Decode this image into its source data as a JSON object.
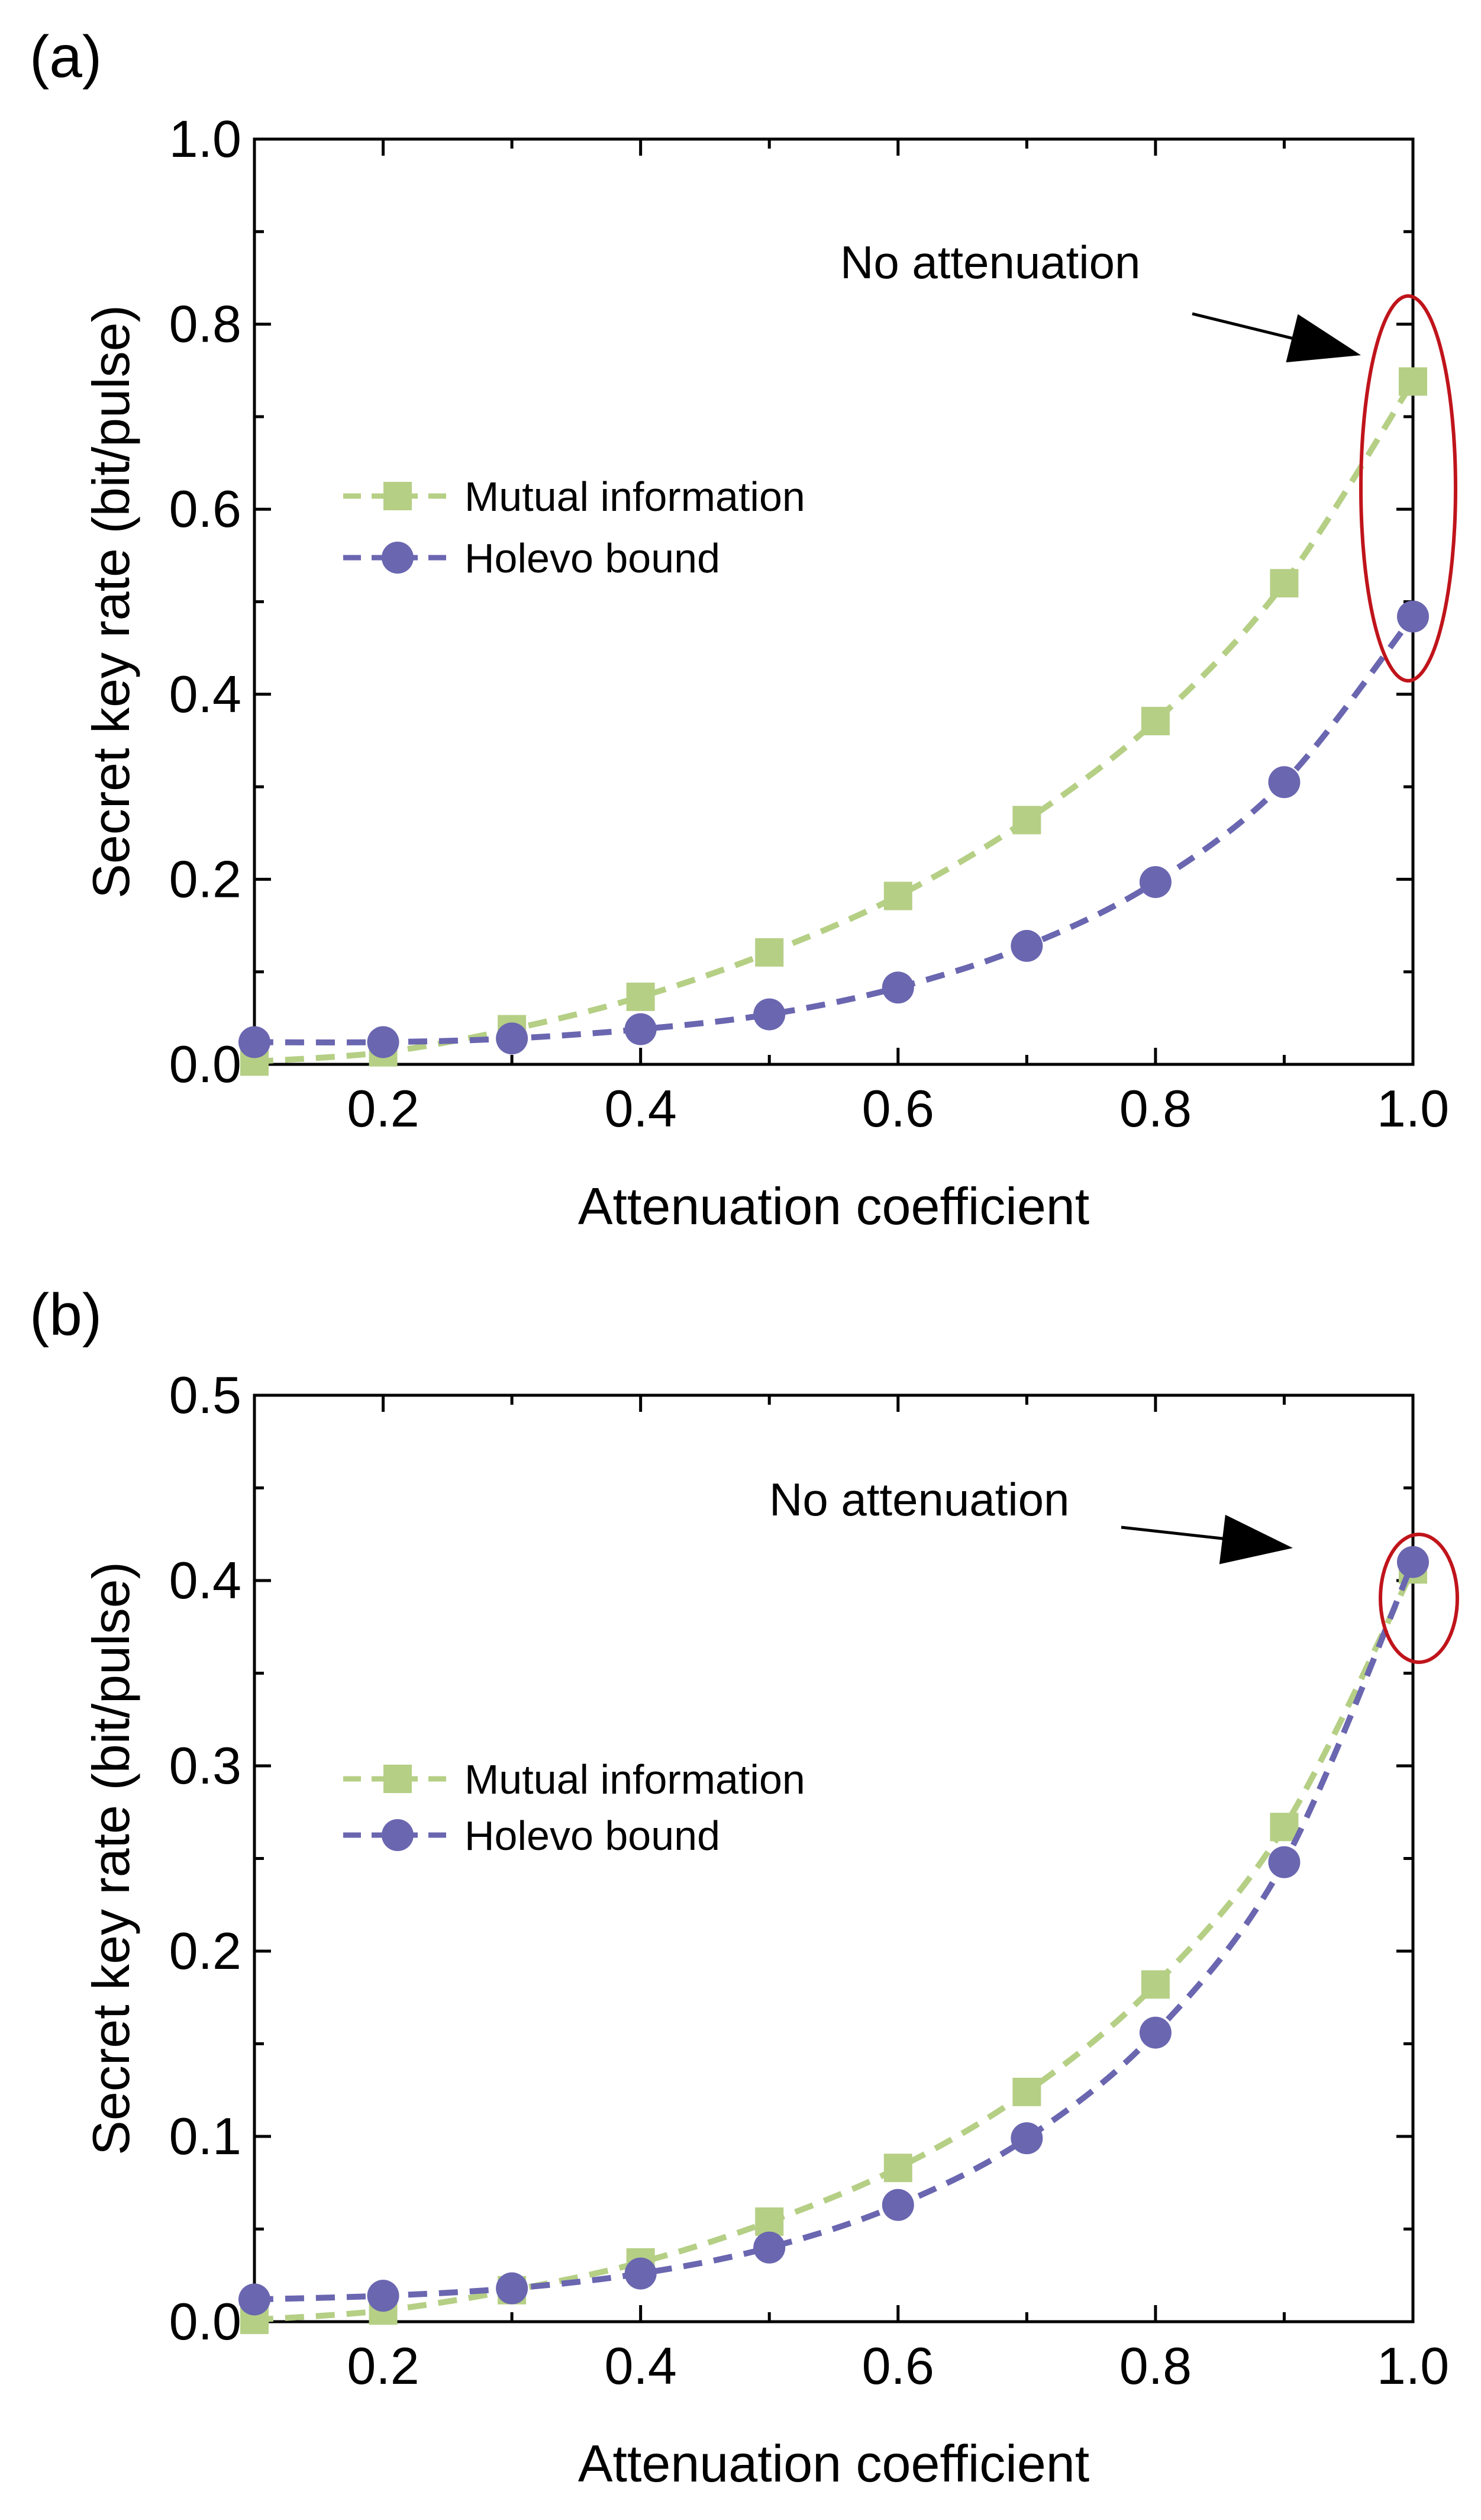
{
  "chart_data": [
    {
      "type": "line",
      "panel_label": "(a)",
      "xlabel": "Attenuation coefficient",
      "ylabel": "Secret key rate (bit/pulse)",
      "xlim": [
        0.1,
        1.0
      ],
      "ylim": [
        0.0,
        1.0
      ],
      "xticks": [
        "0.2",
        "0.4",
        "0.6",
        "0.8",
        "1.0"
      ],
      "xtick_values": [
        0.2,
        0.4,
        0.6,
        0.8,
        1.0
      ],
      "yticks": [
        "0.0",
        "0.2",
        "0.4",
        "0.6",
        "0.8",
        "1.0"
      ],
      "ytick_values": [
        0.0,
        0.2,
        0.4,
        0.6,
        0.8,
        1.0
      ],
      "x": [
        0.1,
        0.2,
        0.3,
        0.4,
        0.5,
        0.6,
        0.7,
        0.8,
        0.9,
        1.0
      ],
      "series": [
        {
          "name": "Mutual information",
          "marker": "square",
          "color": "#b5cf85",
          "values": [
            0.003,
            0.013,
            0.038,
            0.073,
            0.121,
            0.182,
            0.264,
            0.371,
            0.52,
            0.738
          ]
        },
        {
          "name": "Holevo bound",
          "marker": "circle",
          "color": "#6a66b0",
          "values": [
            0.024,
            0.024,
            0.028,
            0.038,
            0.054,
            0.083,
            0.128,
            0.197,
            0.305,
            0.484
          ]
        }
      ],
      "legend_position": "middle-left",
      "annotation": {
        "text": "No attenuation",
        "target": "x = 1.0 points",
        "highlight_color": "#c0141b"
      }
    },
    {
      "type": "line",
      "panel_label": "(b)",
      "xlabel": "Attenuation coefficient",
      "ylabel": "Secret key rate (bit/pulse)",
      "xlim": [
        0.1,
        1.0
      ],
      "ylim": [
        0.0,
        0.5
      ],
      "xticks": [
        "0.2",
        "0.4",
        "0.6",
        "0.8",
        "1.0"
      ],
      "xtick_values": [
        0.2,
        0.4,
        0.6,
        0.8,
        1.0
      ],
      "yticks": [
        "0.0",
        "0.1",
        "0.2",
        "0.3",
        "0.4",
        "0.5"
      ],
      "ytick_values": [
        0.0,
        0.1,
        0.2,
        0.3,
        0.4,
        0.5
      ],
      "x": [
        0.1,
        0.2,
        0.3,
        0.4,
        0.5,
        0.6,
        0.7,
        0.8,
        0.9,
        1.0
      ],
      "series": [
        {
          "name": "Mutual information",
          "marker": "square",
          "color": "#b5cf85",
          "values": [
            0.001,
            0.006,
            0.017,
            0.032,
            0.054,
            0.083,
            0.124,
            0.182,
            0.267,
            0.406
          ]
        },
        {
          "name": "Holevo bound",
          "marker": "circle",
          "color": "#6a66b0",
          "values": [
            0.012,
            0.014,
            0.018,
            0.026,
            0.04,
            0.063,
            0.099,
            0.156,
            0.248,
            0.41
          ]
        }
      ],
      "legend_position": "middle-left",
      "annotation": {
        "text": "No attenuation",
        "target": "x = 1.0 points",
        "highlight_color": "#c0141b"
      }
    }
  ]
}
